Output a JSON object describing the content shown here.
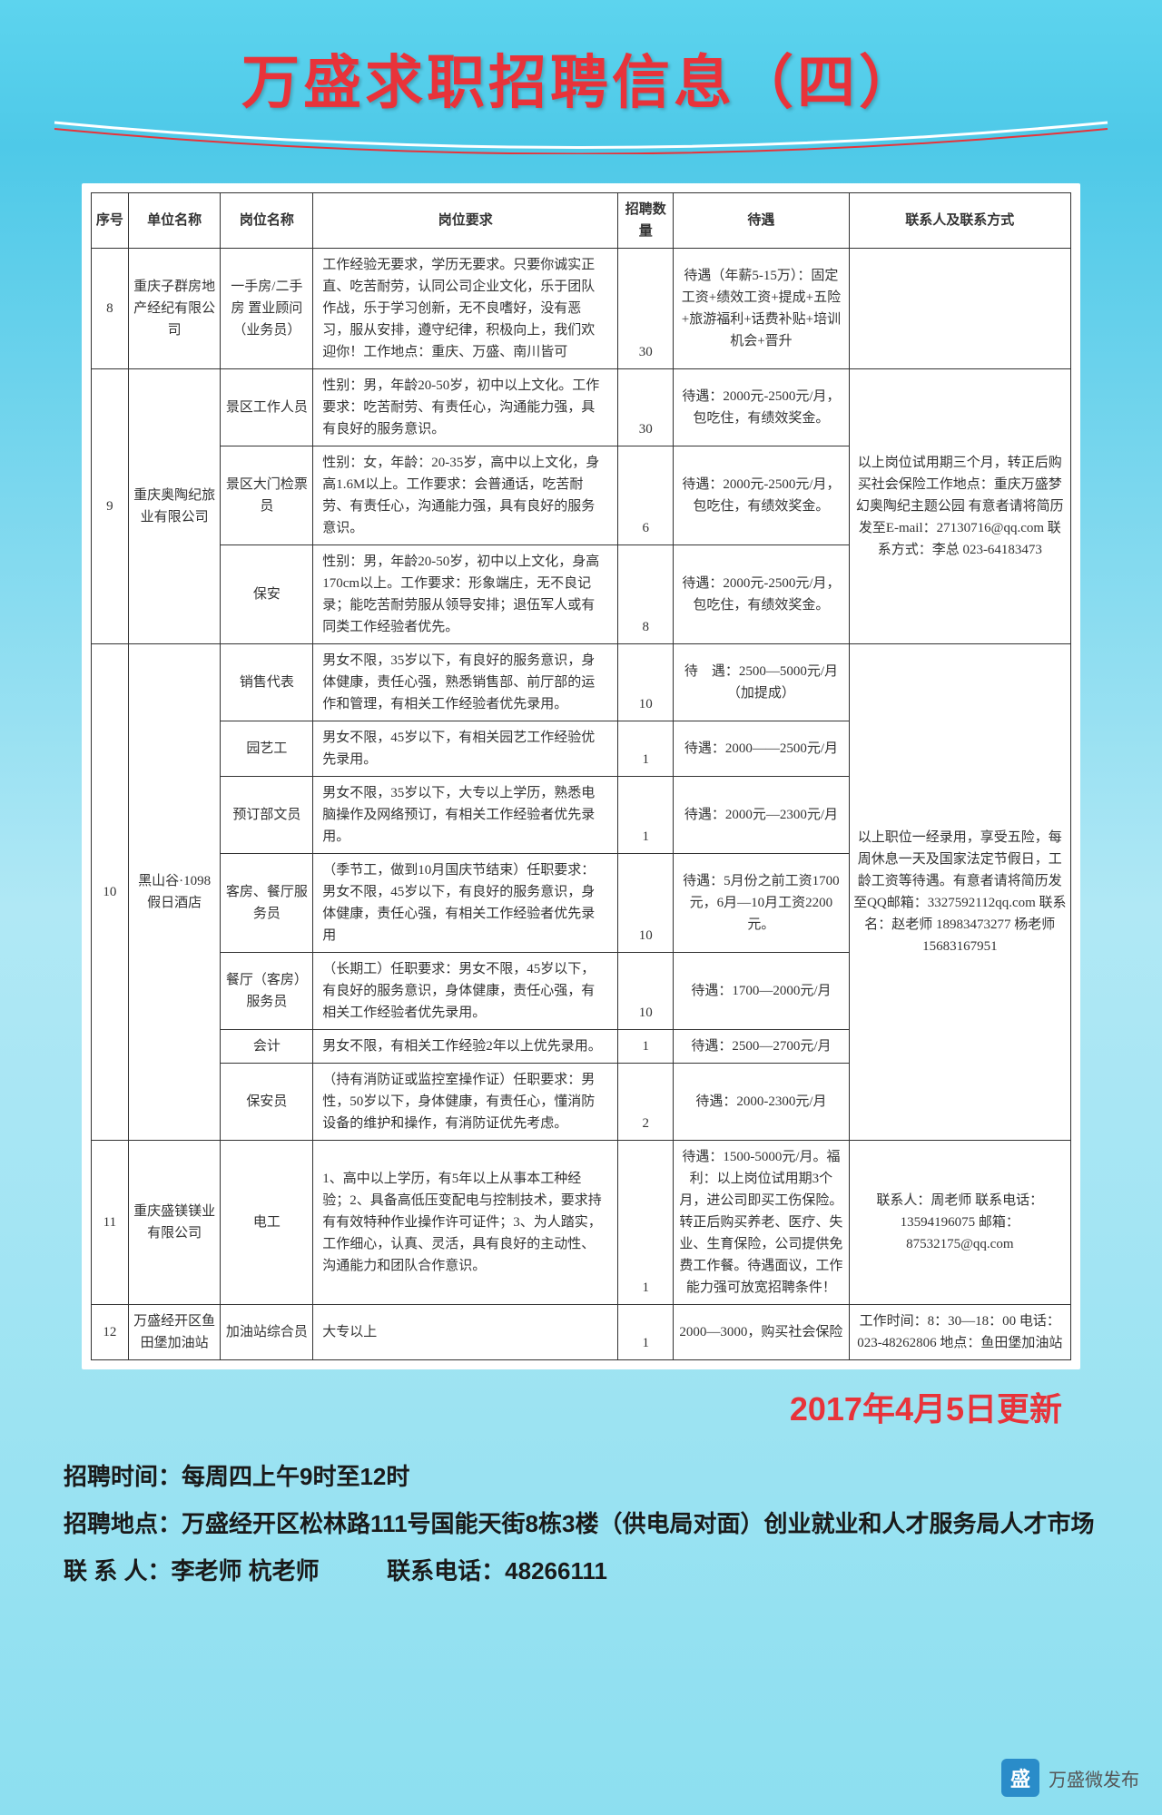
{
  "title": "万盛求职招聘信息（四）",
  "update_date": "2017年4月5日更新",
  "columns": [
    "序号",
    "单位名称",
    "岗位名称",
    "岗位要求",
    "招聘数量",
    "待遇",
    "联系人及联系方式"
  ],
  "rows": [
    {
      "seq": "8",
      "org": "重庆子群房地产经纪有限公司",
      "positions": [
        {
          "pos": "一手房/二手房 置业顾问（业务员）",
          "req": "工作经验无要求，学历无要求。只要你诚实正直、吃苦耐劳，认同公司企业文化，乐于团队作战，乐于学习创新，无不良嗜好，没有恶习，服从安排，遵守纪律，积极向上，我们欢迎你！工作地点：重庆、万盛、南川皆可",
          "num": "30",
          "sal": "待遇（年薪5-15万）：固定工资+绩效工资+提成+五险+旅游福利+话费补贴+培训机会+晋升",
          "contact": ""
        }
      ]
    },
    {
      "seq": "9",
      "org": "重庆奥陶纪旅业有限公司",
      "contact": "以上岗位试用期三个月，转正后购买社会保险工作地点：重庆万盛梦幻奥陶纪主题公园 有意者请将简历发至E-mail：27130716@qq.com 联系方式：李总 023-64183473",
      "positions": [
        {
          "pos": "景区工作人员",
          "req": "性别：男，年龄20-50岁，初中以上文化。工作要求：吃苦耐劳、有责任心，沟通能力强，具有良好的服务意识。",
          "num": "30",
          "sal": "待遇：2000元-2500元/月，包吃住，有绩效奖金。"
        },
        {
          "pos": "景区大门检票员",
          "req": "性别：女，年龄：20-35岁，高中以上文化，身高1.6M以上。工作要求：会普通话，吃苦耐劳、有责任心，沟通能力强，具有良好的服务意识。",
          "num": "6",
          "sal": "待遇：2000元-2500元/月，包吃住，有绩效奖金。"
        },
        {
          "pos": "保安",
          "req": "性别：男，年龄20-50岁，初中以上文化，身高170cm以上。工作要求：形象端庄，无不良记录；能吃苦耐劳服从领导安排；退伍军人或有同类工作经验者优先。",
          "num": "8",
          "sal": "待遇：2000元-2500元/月，包吃住，有绩效奖金。"
        }
      ]
    },
    {
      "seq": "10",
      "org": "黑山谷·1098假日酒店",
      "contact": "以上职位一经录用，享受五险，每周休息一天及国家法定节假日，工龄工资等待遇。有意者请将简历发至QQ邮箱：3327592112qq.com 联系名：赵老师 18983473277 杨老师 15683167951",
      "positions": [
        {
          "pos": "销售代表",
          "req": "男女不限，35岁以下，有良好的服务意识，身体健康，责任心强，熟悉销售部、前厅部的运作和管理，有相关工作经验者优先录用。",
          "num": "10",
          "sal": "待　遇：2500—5000元/月（加提成）"
        },
        {
          "pos": "园艺工",
          "req": "男女不限，45岁以下，有相关园艺工作经验优先录用。",
          "num": "1",
          "sal": "待遇：2000——2500元/月"
        },
        {
          "pos": "预订部文员",
          "req": "男女不限，35岁以下，大专以上学历，熟悉电脑操作及网络预订，有相关工作经验者优先录用。",
          "num": "1",
          "sal": "待遇：2000元—2300元/月"
        },
        {
          "pos": "客房、餐厅服务员",
          "req": "（季节工，做到10月国庆节结束）任职要求：男女不限，45岁以下，有良好的服务意识，身体健康，责任心强，有相关工作经验者优先录用",
          "num": "10",
          "sal": "待遇：5月份之前工资1700元，6月—10月工资2200元。"
        },
        {
          "pos": "餐厅（客房）服务员",
          "req": "（长期工）任职要求：男女不限，45岁以下，有良好的服务意识，身体健康，责任心强，有相关工作经验者优先录用。",
          "num": "10",
          "sal": "待遇：1700—2000元/月"
        },
        {
          "pos": "会计",
          "req": "男女不限，有相关工作经验2年以上优先录用。",
          "num": "1",
          "sal": "待遇：2500—2700元/月"
        },
        {
          "pos": "保安员",
          "req": "（持有消防证或监控室操作证）任职要求：男性，50岁以下，身体健康，有责任心，懂消防设备的维护和操作，有消防证优先考虑。",
          "num": "2",
          "sal": "待遇：2000-2300元/月"
        }
      ]
    },
    {
      "seq": "11",
      "org": "重庆盛镁镁业有限公司",
      "positions": [
        {
          "pos": "电工",
          "req": "1、高中以上学历，有5年以上从事本工种经验；2、具备高低压变配电与控制技术，要求持有有效特种作业操作许可证件；3、为人踏实，工作细心，认真、灵活，具有良好的主动性、沟通能力和团队合作意识。",
          "num": "1",
          "sal": "待遇：1500-5000元/月。福利：以上岗位试用期3个月，进公司即买工伤保险。转正后购买养老、医疗、失业、生育保险，公司提供免费工作餐。待遇面议，工作能力强可放宽招聘条件！",
          "contact": "联系人：周老师 联系电话：13594196075 邮箱：87532175@qq.com"
        }
      ]
    },
    {
      "seq": "12",
      "org": "万盛经开区鱼田堡加油站",
      "positions": [
        {
          "pos": "加油站综合员",
          "req": "大专以上",
          "num": "1",
          "sal": "2000—3000，购买社会保险",
          "contact": "工作时间：8：30—18：00 电话：023-48262806 地点：鱼田堡加油站"
        }
      ]
    }
  ],
  "footer": {
    "time_label": "招聘时间：",
    "time_value": "每周四上午9时至12时",
    "place_label": "招聘地点：",
    "place_value": "万盛经开区松林路111号国能天街8栋3楼（供电局对面）创业就业和人才服务局人才市场",
    "contact_label": "联 系 人：",
    "contact_value": "李老师 杭老师",
    "phone_label": "联系电话：",
    "phone_value": "48266111"
  },
  "watermark": "万盛微发布",
  "colors": {
    "title": "#e8333a",
    "bg_top": "#5dd4ee",
    "bg_bottom": "#8ddff0",
    "border": "#333333",
    "text": "#333333"
  },
  "typography": {
    "title_fontsize": 64,
    "table_fontsize": 15,
    "footer_fontsize": 26,
    "update_fontsize": 36
  }
}
